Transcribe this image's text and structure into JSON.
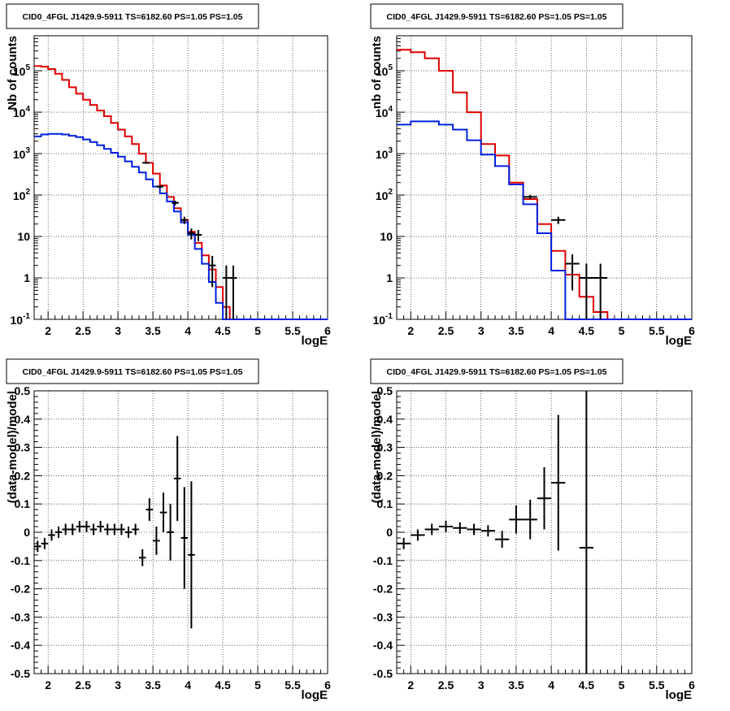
{
  "colors": {
    "model_total": "#e00000",
    "model_source": "#0020e0",
    "data": "#000000",
    "grid": "#000000",
    "background": "#ffffff"
  },
  "chart_data": [
    {
      "type": "line",
      "title": "CID0_4FGL J1429.9-5911 TS=6182.60 PS=1.05 PS=1.05",
      "xlabel": "logE",
      "ylabel": "Nb of counts",
      "xlim": [
        1.8,
        6.0
      ],
      "ylim": [
        0.1,
        700000
      ],
      "yscale": "log",
      "xticks": [
        "2",
        "2.5",
        "3",
        "3.5",
        "4",
        "4.5",
        "5",
        "5.5",
        "6"
      ],
      "yticks": [
        "10^-1",
        "1",
        "10",
        "10^2",
        "10^3",
        "10^4",
        "10^5"
      ],
      "grid": true,
      "legend": "none",
      "bin_edges": [
        1.8,
        1.9,
        2.0,
        2.1,
        2.2,
        2.3,
        2.4,
        2.5,
        2.6,
        2.7,
        2.8,
        2.9,
        3.0,
        3.1,
        3.2,
        3.3,
        3.4,
        3.5,
        3.6,
        3.7,
        3.8,
        3.9,
        4.0,
        4.1,
        4.2,
        4.3,
        4.4,
        4.5,
        4.6,
        4.7,
        4.8,
        4.9,
        5.0,
        5.1,
        5.2,
        5.3,
        5.4,
        5.5,
        5.6,
        5.7,
        5.8,
        5.9,
        6.0
      ],
      "series": [
        {
          "values": [
            130000,
            125000,
            110000,
            85000,
            60000,
            40000,
            28000,
            20000,
            15000,
            11000,
            8000,
            5500,
            3800,
            2600,
            1700,
            1000,
            600,
            330,
            170,
            90,
            48,
            25,
            13,
            7,
            3.5,
            1.6,
            0.6,
            0.2,
            0.1,
            0.1,
            0.1,
            0.1,
            0.1,
            0.1,
            0.1,
            0.1,
            0.1,
            0.1,
            0.1,
            0.1,
            0.1,
            0.1
          ]
        },
        {
          "values": [
            2600,
            2900,
            3000,
            3000,
            2900,
            2700,
            2500,
            2200,
            1900,
            1600,
            1300,
            1050,
            850,
            650,
            480,
            350,
            240,
            160,
            110,
            70,
            40,
            22,
            11,
            5,
            2.2,
            0.8,
            0.25,
            0.1,
            0.1,
            0.1,
            0.1,
            0.1,
            0.1,
            0.1,
            0.1,
            0.1,
            0.1,
            0.1,
            0.1,
            0.1,
            0.1,
            0.1
          ]
        }
      ],
      "data_points": [
        {
          "x": 3.4,
          "y": 600,
          "xerr": 0.05,
          "yerr_lo": 25,
          "yerr_hi": 25
        },
        {
          "x": 3.6,
          "y": 160,
          "xerr": 0.05,
          "yerr_lo": 13,
          "yerr_hi": 13
        },
        {
          "x": 3.82,
          "y": 65,
          "xerr": 0.05,
          "yerr_lo": 8,
          "yerr_hi": 8
        },
        {
          "x": 3.95,
          "y": 25,
          "xerr": 0.05,
          "yerr_lo": 5,
          "yerr_hi": 5
        },
        {
          "x": 4.05,
          "y": 12,
          "xerr": 0.05,
          "yerr_lo": 3.5,
          "yerr_hi": 3.5
        },
        {
          "x": 4.15,
          "y": 11,
          "xerr": 0.05,
          "yerr_lo": 3.3,
          "yerr_hi": 3.3
        },
        {
          "x": 4.35,
          "y": 2,
          "xerr": 0.05,
          "yerr_lo": 1.4,
          "yerr_hi": 1.4
        },
        {
          "x": 4.55,
          "y": 1,
          "xerr": 0.05,
          "yerr_lo": 0.95,
          "yerr_hi": 1.0
        },
        {
          "x": 4.65,
          "y": 1,
          "xerr": 0.05,
          "yerr_lo": 0.95,
          "yerr_hi": 1.0
        }
      ]
    },
    {
      "type": "line",
      "title": "CID0_4FGL J1429.9-5911 TS=6182.60 PS=1.05 PS=1.05",
      "xlabel": "logE",
      "ylabel": "nb of counts",
      "xlim": [
        1.8,
        6.0
      ],
      "ylim": [
        0.1,
        700000
      ],
      "yscale": "log",
      "xticks": [
        "2",
        "2.5",
        "3",
        "3.5",
        "4",
        "4.5",
        "5",
        "5.5",
        "6"
      ],
      "yticks": [
        "10^-1",
        "1",
        "10",
        "10^2",
        "10^3",
        "10^4",
        "10^5"
      ],
      "grid": true,
      "legend": "none",
      "bin_edges": [
        1.8,
        2.0,
        2.2,
        2.4,
        2.6,
        2.8,
        3.0,
        3.2,
        3.4,
        3.6,
        3.8,
        4.0,
        4.2,
        4.4,
        4.6,
        4.8,
        5.0,
        5.2,
        5.4,
        5.6,
        5.8,
        6.0
      ],
      "series": [
        {
          "values": [
            320000,
            280000,
            200000,
            100000,
            30000,
            10000,
            1700,
            900,
            200,
            80,
            20,
            4.5,
            1.2,
            0.35,
            0.15,
            0.1,
            0.1,
            0.1,
            0.1,
            0.1,
            0.1
          ]
        },
        {
          "values": [
            5000,
            6000,
            6000,
            5000,
            3800,
            2100,
            950,
            500,
            180,
            60,
            12,
            1.5,
            0.1,
            0.1,
            0.1,
            0.1,
            0.1,
            0.1,
            0.1,
            0.1,
            0.1
          ]
        }
      ],
      "data_points": [
        {
          "x": 3.7,
          "y": 90,
          "xerr": 0.1,
          "yerr_lo": 10,
          "yerr_hi": 10
        },
        {
          "x": 4.1,
          "y": 25,
          "xerr": 0.1,
          "yerr_lo": 5,
          "yerr_hi": 5
        },
        {
          "x": 4.3,
          "y": 2.2,
          "xerr": 0.1,
          "yerr_lo": 1.7,
          "yerr_hi": 1.5
        },
        {
          "x": 4.5,
          "y": 1,
          "xerr": 0.1,
          "yerr_lo": 0.9,
          "yerr_hi": 1.2
        },
        {
          "x": 4.7,
          "y": 1,
          "xerr": 0.1,
          "yerr_lo": 0.9,
          "yerr_hi": 1.2
        }
      ]
    },
    {
      "type": "scatter",
      "title": "CID0_4FGL J1429.9-5911 TS=6182.60 PS=1.05 PS=1.05",
      "xlabel": "logE",
      "ylabel": "(data-model)/model",
      "xlim": [
        1.8,
        6.0
      ],
      "ylim": [
        -0.5,
        0.5
      ],
      "xticks": [
        "2",
        "2.5",
        "3",
        "3.5",
        "4",
        "4.5",
        "5",
        "5.5",
        "6"
      ],
      "yticks": [
        "-0.5",
        "-0.4",
        "-0.3",
        "-0.2",
        "-0.1",
        "0",
        "0.1",
        "0.2",
        "0.3",
        "0.4",
        "0.5"
      ],
      "grid": true,
      "legend": "none",
      "points": [
        {
          "x": 1.85,
          "y": -0.05,
          "xerr": 0.05,
          "yerr": 0.02
        },
        {
          "x": 1.95,
          "y": -0.04,
          "xerr": 0.05,
          "yerr": 0.02
        },
        {
          "x": 2.05,
          "y": -0.01,
          "xerr": 0.05,
          "yerr": 0.02
        },
        {
          "x": 2.15,
          "y": 0.0,
          "xerr": 0.05,
          "yerr": 0.02
        },
        {
          "x": 2.25,
          "y": 0.01,
          "xerr": 0.05,
          "yerr": 0.02
        },
        {
          "x": 2.35,
          "y": 0.01,
          "xerr": 0.05,
          "yerr": 0.02
        },
        {
          "x": 2.45,
          "y": 0.02,
          "xerr": 0.05,
          "yerr": 0.02
        },
        {
          "x": 2.55,
          "y": 0.02,
          "xerr": 0.05,
          "yerr": 0.02
        },
        {
          "x": 2.65,
          "y": 0.01,
          "xerr": 0.05,
          "yerr": 0.02
        },
        {
          "x": 2.75,
          "y": 0.02,
          "xerr": 0.05,
          "yerr": 0.02
        },
        {
          "x": 2.85,
          "y": 0.01,
          "xerr": 0.05,
          "yerr": 0.02
        },
        {
          "x": 2.95,
          "y": 0.01,
          "xerr": 0.05,
          "yerr": 0.02
        },
        {
          "x": 3.05,
          "y": 0.01,
          "xerr": 0.05,
          "yerr": 0.02
        },
        {
          "x": 3.15,
          "y": 0.0,
          "xerr": 0.05,
          "yerr": 0.02
        },
        {
          "x": 3.25,
          "y": 0.01,
          "xerr": 0.05,
          "yerr": 0.02
        },
        {
          "x": 3.35,
          "y": -0.09,
          "xerr": 0.05,
          "yerr": 0.03
        },
        {
          "x": 3.45,
          "y": 0.08,
          "xerr": 0.05,
          "yerr": 0.04
        },
        {
          "x": 3.55,
          "y": -0.03,
          "xerr": 0.05,
          "yerr": 0.05
        },
        {
          "x": 3.65,
          "y": 0.07,
          "xerr": 0.05,
          "yerr": 0.07
        },
        {
          "x": 3.75,
          "y": 0.0,
          "xerr": 0.05,
          "yerr": 0.1
        },
        {
          "x": 3.85,
          "y": 0.19,
          "xerr": 0.05,
          "yerr": 0.15
        },
        {
          "x": 3.95,
          "y": -0.02,
          "xerr": 0.05,
          "yerr": 0.18
        },
        {
          "x": 4.05,
          "y": -0.08,
          "xerr": 0.05,
          "yerr": 0.26
        }
      ]
    },
    {
      "type": "scatter",
      "title": "CID0_4FGL J1429.9-5911 TS=6182.60 PS=1.05 PS=1.05",
      "xlabel": "logE",
      "ylabel": "(data-model)/model",
      "xlim": [
        1.8,
        6.0
      ],
      "ylim": [
        -0.5,
        0.5
      ],
      "xticks": [
        "2",
        "2.5",
        "3",
        "3.5",
        "4",
        "4.5",
        "5",
        "5.5",
        "6"
      ],
      "yticks": [
        "-0.5",
        "-0.4",
        "-0.3",
        "-0.2",
        "-0.1",
        "0",
        "0.1",
        "0.2",
        "0.3",
        "0.4",
        "0.5"
      ],
      "grid": true,
      "legend": "none",
      "points": [
        {
          "x": 1.9,
          "y": -0.04,
          "xerr": 0.1,
          "yerr": 0.02
        },
        {
          "x": 2.1,
          "y": -0.01,
          "xerr": 0.1,
          "yerr": 0.02
        },
        {
          "x": 2.3,
          "y": 0.01,
          "xerr": 0.1,
          "yerr": 0.02
        },
        {
          "x": 2.5,
          "y": 0.02,
          "xerr": 0.1,
          "yerr": 0.02
        },
        {
          "x": 2.7,
          "y": 0.015,
          "xerr": 0.1,
          "yerr": 0.02
        },
        {
          "x": 2.9,
          "y": 0.01,
          "xerr": 0.1,
          "yerr": 0.02
        },
        {
          "x": 3.1,
          "y": 0.005,
          "xerr": 0.1,
          "yerr": 0.02
        },
        {
          "x": 3.3,
          "y": -0.025,
          "xerr": 0.1,
          "yerr": 0.03
        },
        {
          "x": 3.5,
          "y": 0.045,
          "xerr": 0.1,
          "yerr": 0.05
        },
        {
          "x": 3.7,
          "y": 0.045,
          "xerr": 0.1,
          "yerr": 0.07
        },
        {
          "x": 3.9,
          "y": 0.12,
          "xerr": 0.1,
          "yerr": 0.11
        },
        {
          "x": 4.1,
          "y": 0.175,
          "xerr": 0.1,
          "yerr": 0.24
        },
        {
          "x": 4.5,
          "y": -0.055,
          "xerr": 0.1,
          "yerr": 0.6
        }
      ]
    }
  ]
}
